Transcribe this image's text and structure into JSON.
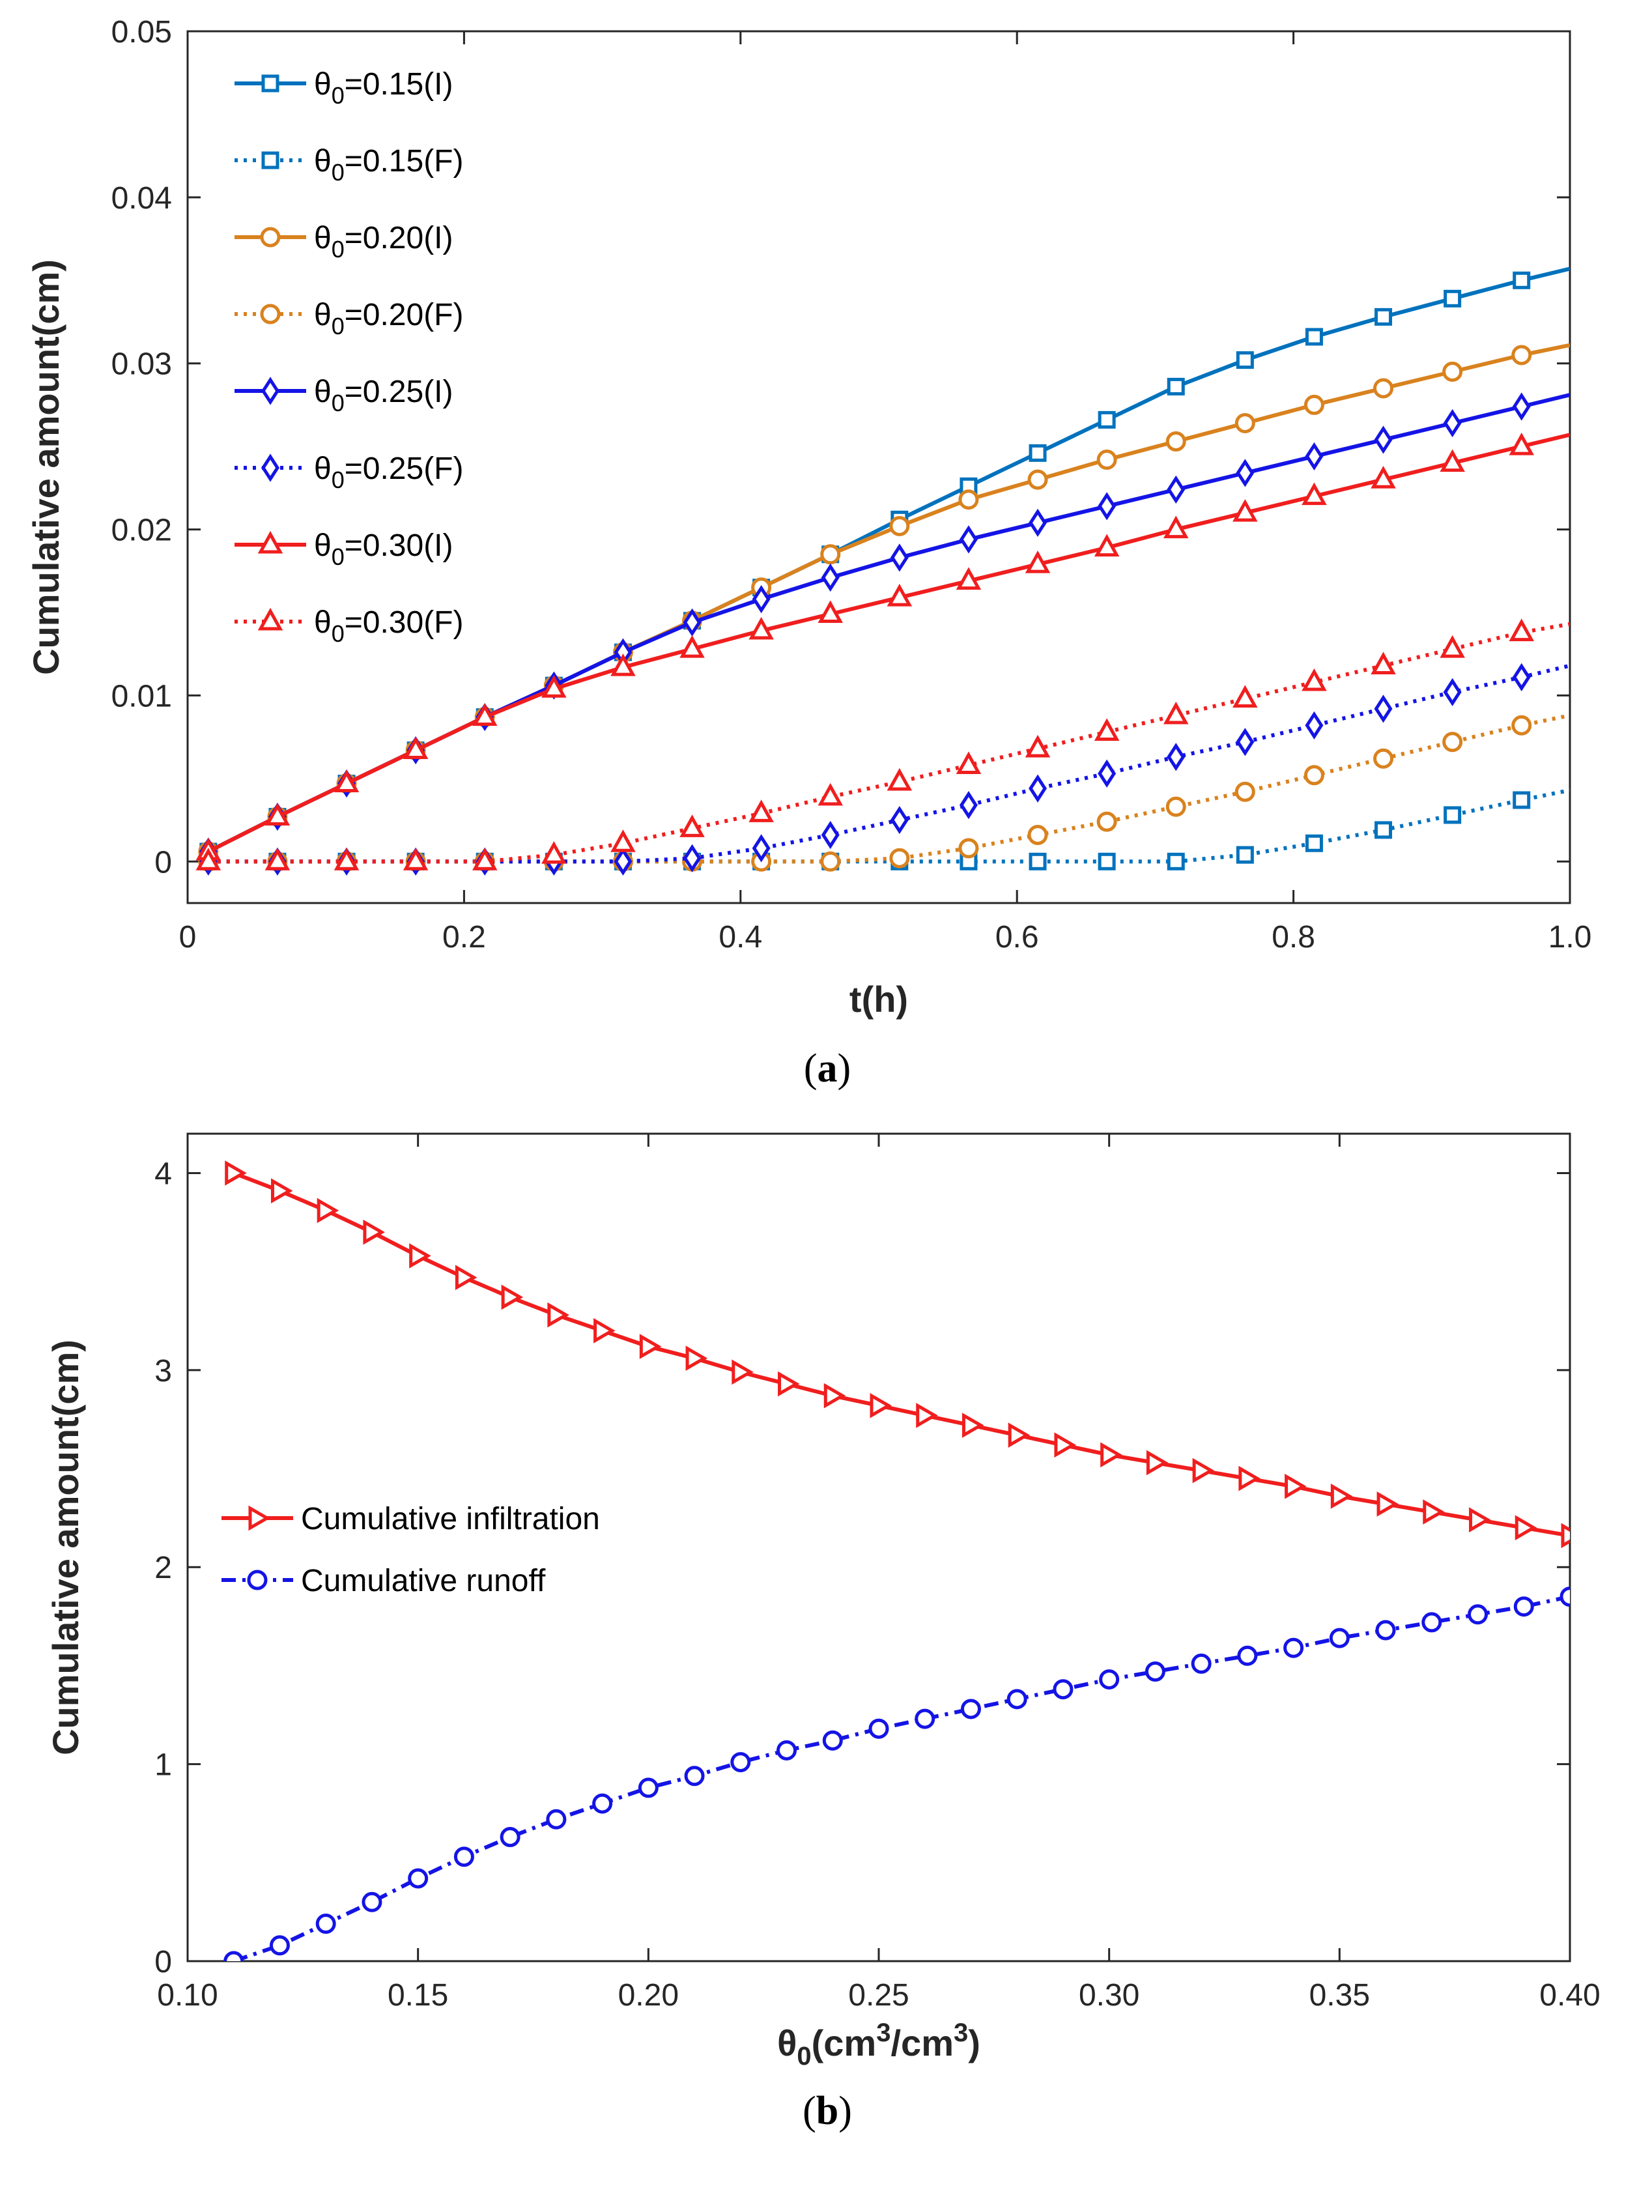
{
  "colors": {
    "s015": "#0072BD",
    "s020": "#D9821E",
    "s025": "#1414E6",
    "s030": "#F01E1E",
    "infiltration": "#F01E1E",
    "runoff": "#1414E6"
  },
  "chart_data": [
    {
      "id": "a",
      "type": "line",
      "caption_open": "(",
      "caption_letter": "a",
      "caption_close": ")",
      "xlabel": "t(h)",
      "ylabel": "Cumulative amount(cm)",
      "xlim": [
        0,
        1.0
      ],
      "ylim": [
        -0.0025,
        0.05
      ],
      "xticks": [
        0,
        0.2,
        0.4,
        0.6,
        0.8,
        1.0
      ],
      "xtick_labels": [
        "0",
        "0.2",
        "0.4",
        "0.6",
        "0.8",
        "1.0"
      ],
      "yticks": [
        0,
        0.01,
        0.02,
        0.03,
        0.04,
        0.05
      ],
      "ytick_labels": [
        "0",
        "0.01",
        "0.02",
        "0.03",
        "0.04",
        "0.05"
      ],
      "legend_position": "top-left",
      "x": [
        0.015,
        0.065,
        0.115,
        0.165,
        0.215,
        0.265,
        0.315,
        0.365,
        0.415,
        0.465,
        0.515,
        0.565,
        0.615,
        0.665,
        0.715,
        0.765,
        0.815,
        0.865,
        0.915,
        0.965,
        1.0
      ],
      "series": [
        {
          "key": "s015I",
          "legend_sym": "θ",
          "legend_sub": "0",
          "legend_rest": "=0.15(I)",
          "color_key": "s015",
          "marker": "square",
          "dash": "solid",
          "values": [
            0.0006,
            0.0027,
            0.0047,
            0.0067,
            0.0087,
            0.0106,
            0.0126,
            0.0145,
            0.0165,
            0.0185,
            0.0206,
            0.0226,
            0.0246,
            0.0266,
            0.0286,
            0.0302,
            0.0316,
            0.0328,
            0.0339,
            0.035,
            0.0357
          ]
        },
        {
          "key": "s015F",
          "legend_sym": "θ",
          "legend_sub": "0",
          "legend_rest": "=0.15(F)",
          "color_key": "s015",
          "marker": "square",
          "dash": "dotted",
          "values": [
            0,
            0,
            0,
            0,
            0,
            0,
            0,
            0,
            0,
            0,
            0,
            0,
            0,
            0,
            0,
            0.0004,
            0.0011,
            0.0019,
            0.0028,
            0.0037,
            0.0043
          ]
        },
        {
          "key": "s020I",
          "legend_sym": "θ",
          "legend_sub": "0",
          "legend_rest": "=0.20(I)",
          "color_key": "s020",
          "marker": "circle",
          "dash": "solid",
          "values": [
            0.0006,
            0.0027,
            0.0047,
            0.0067,
            0.0087,
            0.0106,
            0.0126,
            0.0145,
            0.0165,
            0.0185,
            0.0202,
            0.0218,
            0.023,
            0.0242,
            0.0253,
            0.0264,
            0.0275,
            0.0285,
            0.0295,
            0.0305,
            0.0311
          ]
        },
        {
          "key": "s020F",
          "legend_sym": "θ",
          "legend_sub": "0",
          "legend_rest": "=0.20(F)",
          "color_key": "s020",
          "marker": "circle",
          "dash": "dotted",
          "values": [
            0,
            0,
            0,
            0,
            0,
            0,
            0,
            0,
            0,
            0,
            0.0002,
            0.0008,
            0.0016,
            0.0024,
            0.0033,
            0.0042,
            0.0052,
            0.0062,
            0.0072,
            0.0082,
            0.0088
          ]
        },
        {
          "key": "s025I",
          "legend_sym": "θ",
          "legend_sub": "0",
          "legend_rest": "=0.25(I)",
          "color_key": "s025",
          "marker": "diamond",
          "dash": "solid",
          "values": [
            0.0006,
            0.0027,
            0.0047,
            0.0067,
            0.0087,
            0.0106,
            0.0126,
            0.0144,
            0.0158,
            0.0171,
            0.0183,
            0.0194,
            0.0204,
            0.0214,
            0.0224,
            0.0234,
            0.0244,
            0.0254,
            0.0264,
            0.0274,
            0.0281
          ]
        },
        {
          "key": "s025F",
          "legend_sym": "θ",
          "legend_sub": "0",
          "legend_rest": "=0.25(F)",
          "color_key": "s025",
          "marker": "diamond",
          "dash": "dotted",
          "values": [
            0,
            0,
            0,
            0,
            0,
            0,
            0,
            0.0002,
            0.0008,
            0.0016,
            0.0025,
            0.0034,
            0.0044,
            0.0053,
            0.0063,
            0.0072,
            0.0082,
            0.0092,
            0.0102,
            0.0111,
            0.0118
          ]
        },
        {
          "key": "s030I",
          "legend_sym": "θ",
          "legend_sub": "0",
          "legend_rest": "=0.30(I)",
          "color_key": "s030",
          "marker": "triangle",
          "dash": "solid",
          "values": [
            0.0006,
            0.0027,
            0.0047,
            0.0067,
            0.0087,
            0.0104,
            0.0117,
            0.0128,
            0.0139,
            0.0149,
            0.0159,
            0.0169,
            0.0179,
            0.0189,
            0.02,
            0.021,
            0.022,
            0.023,
            0.024,
            0.025,
            0.0257
          ]
        },
        {
          "key": "s030F",
          "legend_sym": "θ",
          "legend_sub": "0",
          "legend_rest": "=0.30(F)",
          "color_key": "s030",
          "marker": "triangle",
          "dash": "dotted",
          "values": [
            0,
            0,
            0,
            0,
            0,
            0.0004,
            0.0011,
            0.002,
            0.0029,
            0.0039,
            0.0048,
            0.0058,
            0.0068,
            0.0078,
            0.0088,
            0.0098,
            0.0108,
            0.0118,
            0.0128,
            0.0138,
            0.0143
          ]
        }
      ]
    },
    {
      "id": "b",
      "type": "line",
      "caption_open": "(",
      "caption_letter": "b",
      "caption_close": ")",
      "xlabel_sym": "θ",
      "xlabel_sub": "0",
      "xlabel_mid": "(cm",
      "xlabel_sup1": "3",
      "xlabel_mid2": "/cm",
      "xlabel_sup2": "3",
      "xlabel_end": ")",
      "ylabel": "Cumulative amount(cm)",
      "xlim": [
        0.1,
        0.4
      ],
      "ylim": [
        0,
        4.2
      ],
      "xticks": [
        0.1,
        0.15,
        0.2,
        0.25,
        0.3,
        0.35,
        0.4
      ],
      "xtick_labels": [
        "0.10",
        "0.15",
        "0.20",
        "0.25",
        "0.30",
        "0.35",
        "0.40"
      ],
      "yticks": [
        0,
        1,
        2,
        3,
        4
      ],
      "ytick_labels": [
        "0",
        "1",
        "2",
        "3",
        "4"
      ],
      "legend_position": "center-left",
      "x": [
        0.11,
        0.12,
        0.13,
        0.14,
        0.15,
        0.16,
        0.17,
        0.18,
        0.19,
        0.2,
        0.21,
        0.22,
        0.23,
        0.24,
        0.25,
        0.26,
        0.27,
        0.28,
        0.29,
        0.3,
        0.31,
        0.32,
        0.33,
        0.34,
        0.35,
        0.36,
        0.37,
        0.38,
        0.39,
        0.4
      ],
      "series": [
        {
          "key": "infil",
          "name": "Cumulative infiltration",
          "color_key": "infiltration",
          "marker": "triangle-right",
          "dash": "solid",
          "values": [
            4.0,
            3.91,
            3.81,
            3.7,
            3.58,
            3.47,
            3.37,
            3.28,
            3.2,
            3.12,
            3.06,
            2.99,
            2.93,
            2.87,
            2.82,
            2.77,
            2.72,
            2.67,
            2.62,
            2.57,
            2.53,
            2.49,
            2.45,
            2.41,
            2.36,
            2.32,
            2.28,
            2.24,
            2.2,
            2.16
          ]
        },
        {
          "key": "runoff",
          "name": "Cumulative runoff",
          "color_key": "runoff",
          "marker": "circle",
          "dash": "dashdot",
          "values": [
            0.0,
            0.08,
            0.19,
            0.3,
            0.42,
            0.53,
            0.63,
            0.72,
            0.8,
            0.88,
            0.94,
            1.01,
            1.07,
            1.12,
            1.18,
            1.23,
            1.28,
            1.33,
            1.38,
            1.43,
            1.47,
            1.51,
            1.55,
            1.59,
            1.64,
            1.68,
            1.72,
            1.76,
            1.8,
            1.85
          ]
        }
      ]
    }
  ]
}
